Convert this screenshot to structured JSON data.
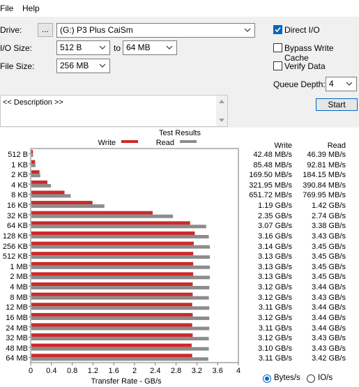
{
  "menu": {
    "file": "File",
    "help": "Help"
  },
  "drive": {
    "label": "Drive:",
    "browse": "...",
    "value": "(G:) P3 Plus CaiSm"
  },
  "io_size": {
    "label": "I/O Size:",
    "from": "512 B",
    "to_label": "to",
    "to": "64 MB"
  },
  "file_size": {
    "label": "File Size:",
    "value": "256 MB"
  },
  "options": {
    "direct_io": {
      "label": "Direct I/O",
      "checked": true
    },
    "bypass_write_cache": {
      "label": "Bypass Write Cache",
      "checked": false
    },
    "verify_data": {
      "label": "Verify Data",
      "checked": false
    },
    "queue_depth_label": "Queue Depth:",
    "queue_depth": "4"
  },
  "start_label": "Start",
  "description": "<< Description >>",
  "results": {
    "title": "Test Results",
    "write_header": "Write",
    "read_header": "Read",
    "write_values": [
      "42.48 MB/s",
      "85.48 MB/s",
      "169.50 MB/s",
      "321.95 MB/s",
      "651.72 MB/s",
      "1.19 GB/s",
      "2.35 GB/s",
      "3.07 GB/s",
      "3.16 GB/s",
      "3.14 GB/s",
      "3.13 GB/s",
      "3.13 GB/s",
      "3.13 GB/s",
      "3.12 GB/s",
      "3.12 GB/s",
      "3.11 GB/s",
      "3.12 GB/s",
      "3.11 GB/s",
      "3.12 GB/s",
      "3.10 GB/s",
      "3.11 GB/s"
    ],
    "read_values": [
      "46.39 MB/s",
      "92.81 MB/s",
      "184.15 MB/s",
      "390.84 MB/s",
      "769.95 MB/s",
      "1.42 GB/s",
      "2.74 GB/s",
      "3.38 GB/s",
      "3.43 GB/s",
      "3.45 GB/s",
      "3.45 GB/s",
      "3.45 GB/s",
      "3.45 GB/s",
      "3.44 GB/s",
      "3.43 GB/s",
      "3.44 GB/s",
      "3.44 GB/s",
      "3.44 GB/s",
      "3.43 GB/s",
      "3.43 GB/s",
      "3.42 GB/s"
    ]
  },
  "units": {
    "bytes_label": "Bytes/s",
    "io_label": "IO/s",
    "selected": "bytes"
  },
  "colors": {
    "write": "#cc2a2a",
    "read": "#8c8c8c",
    "accent": "#0067c0"
  },
  "chart_data": {
    "type": "bar",
    "orientation": "horizontal",
    "categories": [
      "512 B",
      "1 KB",
      "2 KB",
      "4 KB",
      "8 KB",
      "16 KB",
      "32 KB",
      "64 KB",
      "128 KB",
      "256 KB",
      "512 KB",
      "1 MB",
      "2 MB",
      "4 MB",
      "8 MB",
      "12 MB",
      "16 MB",
      "24 MB",
      "32 MB",
      "48 MB",
      "64 MB"
    ],
    "series": [
      {
        "name": "Write",
        "values": [
          0.04248,
          0.08548,
          0.1695,
          0.32195,
          0.65172,
          1.19,
          2.35,
          3.07,
          3.16,
          3.14,
          3.13,
          3.13,
          3.13,
          3.12,
          3.12,
          3.11,
          3.12,
          3.11,
          3.12,
          3.1,
          3.11
        ]
      },
      {
        "name": "Read",
        "values": [
          0.04639,
          0.09281,
          0.18415,
          0.39084,
          0.76995,
          1.42,
          2.74,
          3.38,
          3.43,
          3.45,
          3.45,
          3.45,
          3.45,
          3.44,
          3.43,
          3.44,
          3.44,
          3.44,
          3.43,
          3.43,
          3.42
        ]
      }
    ],
    "xlabel": "Transfer Rate - GB/s",
    "xlim": [
      0,
      4
    ],
    "xticks": [
      "0",
      "0.4",
      "0.8",
      "1.2",
      "1.6",
      "2",
      "2.4",
      "2.8",
      "3.2",
      "3.6",
      "4"
    ],
    "legend": "top-center"
  }
}
